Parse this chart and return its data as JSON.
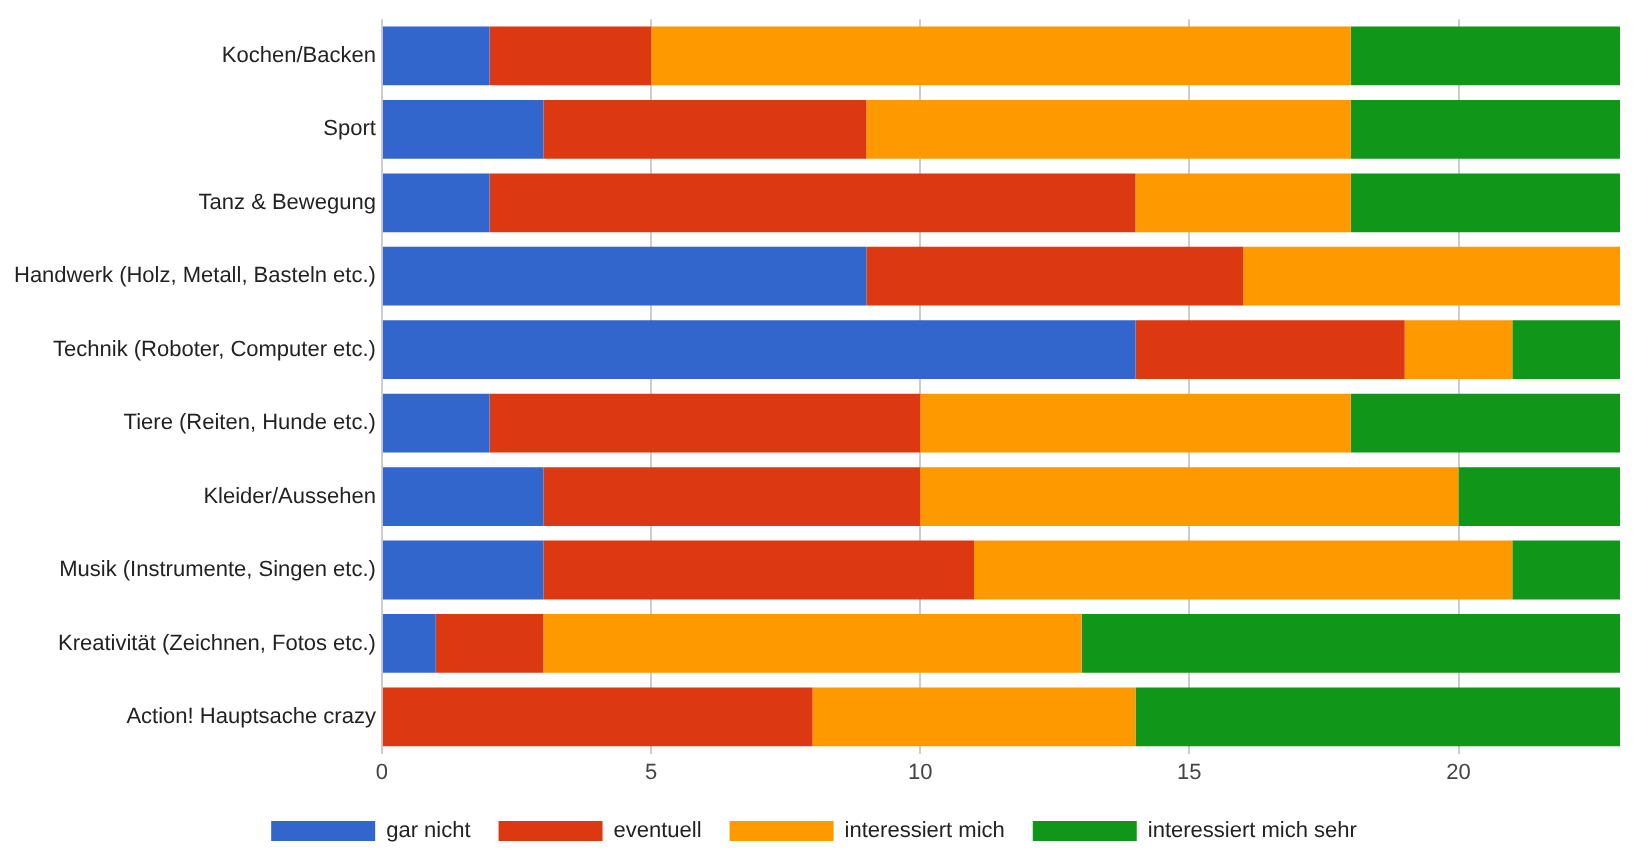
{
  "chart_data": {
    "type": "bar",
    "orientation": "horizontal",
    "stacked": true,
    "categories": [
      "Kochen/Backen",
      "Sport",
      "Tanz & Bewegung",
      "Handwerk (Holz, Metall, Basteln etc.)",
      "Technik (Roboter, Computer etc.)",
      "Tiere (Reiten, Hunde etc.)",
      "Kleider/Aussehen",
      "Musik (Instrumente, Singen etc.)",
      "Kreativität (Zeichnen, Fotos etc.)",
      "Action! Hauptsache crazy"
    ],
    "series": [
      {
        "name": "gar nicht",
        "color": "#3366cc",
        "values": [
          2,
          3,
          2,
          9,
          14,
          2,
          3,
          3,
          1,
          0
        ]
      },
      {
        "name": "eventuell",
        "color": "#dc3912",
        "values": [
          3,
          6,
          12,
          7,
          5,
          8,
          7,
          8,
          2,
          8
        ]
      },
      {
        "name": "interessiert mich",
        "color": "#ff9900",
        "values": [
          13,
          9,
          4,
          7,
          2,
          8,
          10,
          10,
          10,
          6
        ]
      },
      {
        "name": "interessiert mich sehr",
        "color": "#109618",
        "values": [
          5,
          5,
          5,
          0,
          2,
          5,
          3,
          2,
          10,
          9
        ]
      }
    ],
    "xlim": [
      0,
      23
    ],
    "xticks": [
      0,
      5,
      10,
      15,
      20
    ],
    "grid": "x",
    "legend": "bottom"
  }
}
